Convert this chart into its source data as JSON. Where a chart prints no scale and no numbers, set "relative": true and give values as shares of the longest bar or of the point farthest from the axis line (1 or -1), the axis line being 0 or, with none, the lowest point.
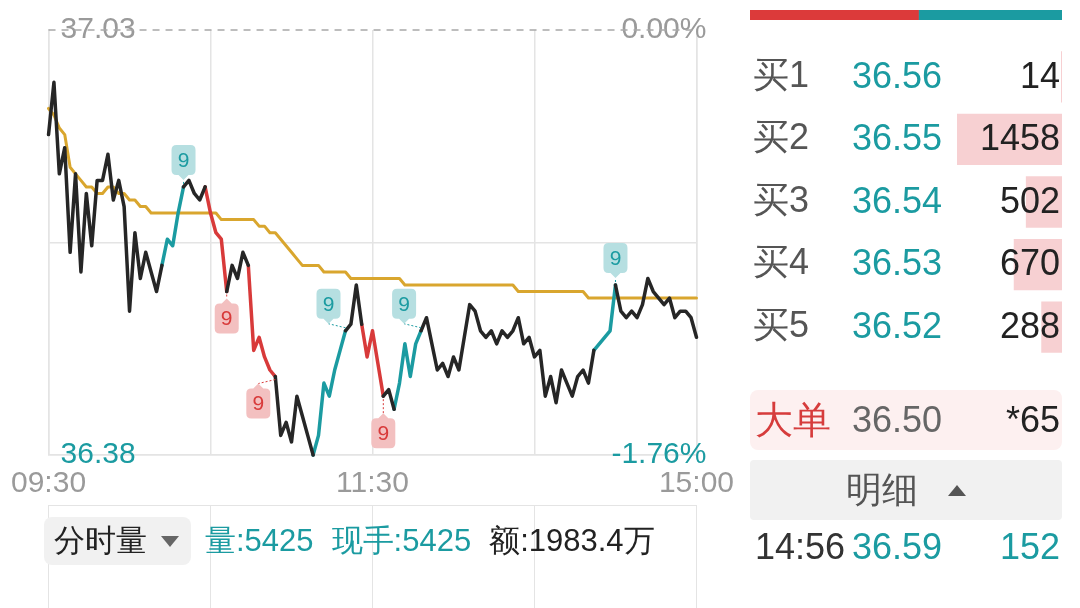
{
  "chart_data": [
    {
      "type": "line",
      "categories": [
        "09:30",
        null,
        null,
        null,
        null,
        null,
        null,
        null,
        null,
        null,
        null,
        null,
        null,
        null,
        null,
        null,
        null,
        null,
        null,
        null,
        null,
        null,
        null,
        null,
        null,
        null,
        null,
        null,
        null,
        null,
        null,
        null,
        null,
        null,
        null,
        null,
        null,
        null,
        null,
        null,
        null,
        null,
        null,
        null,
        null,
        null,
        null,
        null,
        null,
        null,
        null,
        null,
        null,
        null,
        null,
        null,
        null,
        null,
        null,
        null,
        "11:30",
        null,
        null,
        null,
        null,
        null,
        null,
        null,
        null,
        null,
        null,
        null,
        null,
        null,
        null,
        null,
        null,
        null,
        null,
        null,
        null,
        null,
        null,
        null,
        null,
        null,
        null,
        null,
        null,
        null,
        null,
        null,
        null,
        null,
        null,
        null,
        null,
        null,
        null,
        null,
        null,
        null,
        null,
        null,
        null,
        null,
        null,
        null,
        null,
        null,
        null,
        null,
        null,
        null,
        null,
        null,
        null,
        null,
        null,
        null,
        "15:00"
      ],
      "series": [
        {
          "color": "#262626",
          "values": [
            36.87,
            36.95,
            36.81,
            36.85,
            36.69,
            36.81,
            36.66,
            36.78,
            36.7,
            36.8,
            36.8,
            36.84,
            36.77,
            36.8,
            36.76,
            36.6,
            36.72,
            36.65,
            36.69,
            36.66,
            36.63,
            36.67,
            null,
            null,
            null,
            36.79,
            36.8,
            36.78,
            36.77,
            36.79,
            null,
            null,
            null,
            36.63,
            36.67,
            36.65,
            36.69,
            36.67,
            null,
            null,
            null,
            null,
            36.5,
            36.41,
            36.43,
            36.4,
            36.47,
            36.44,
            36.41,
            36.38,
            null,
            null,
            null,
            null,
            null,
            36.57,
            36.58,
            36.64,
            36.58,
            null,
            null,
            null,
            36.47,
            36.48,
            36.45,
            null,
            null,
            null,
            null,
            36.57,
            36.59,
            36.55,
            36.51,
            36.52,
            36.5,
            36.53,
            36.51,
            36.56,
            36.61,
            36.6,
            36.57,
            36.56,
            36.57,
            36.55,
            36.57,
            36.56,
            36.57,
            36.59,
            36.55,
            36.56,
            36.53,
            36.54,
            36.47,
            36.5,
            36.46,
            36.51,
            36.49,
            36.47,
            36.5,
            36.51,
            36.49,
            36.54,
            null,
            null,
            null,
            36.64,
            36.6,
            36.59,
            36.6,
            36.59,
            36.61,
            36.65,
            36.63,
            36.62,
            36.61,
            36.62,
            36.59,
            36.6,
            36.6,
            36.59,
            36.56
          ]
        },
        {
          "color": "#1b9ba1",
          "values": [
            null,
            null,
            null,
            null,
            null,
            null,
            null,
            null,
            null,
            null,
            null,
            null,
            null,
            null,
            null,
            null,
            null,
            null,
            null,
            null,
            null,
            36.67,
            36.71,
            36.7,
            36.75,
            36.79,
            null,
            null,
            null,
            null,
            null,
            null,
            null,
            null,
            null,
            null,
            null,
            null,
            null,
            null,
            null,
            null,
            null,
            null,
            null,
            null,
            null,
            null,
            null,
            36.38,
            36.41,
            36.49,
            36.47,
            36.51,
            36.54,
            36.57,
            null,
            null,
            null,
            null,
            null,
            null,
            null,
            null,
            36.45,
            36.49,
            36.55,
            36.5,
            36.55,
            36.57,
            null,
            null,
            null,
            null,
            null,
            null,
            null,
            null,
            null,
            null,
            null,
            null,
            null,
            null,
            null,
            null,
            null,
            null,
            null,
            null,
            null,
            null,
            null,
            null,
            null,
            null,
            null,
            null,
            null,
            null,
            null,
            36.54,
            36.55,
            36.56,
            36.57,
            36.64,
            null,
            null,
            null,
            null,
            null,
            null,
            null,
            null,
            null,
            null,
            null,
            null,
            null,
            null,
            null
          ]
        },
        {
          "color": "#d83a3a",
          "values": [
            null,
            null,
            null,
            null,
            null,
            null,
            null,
            null,
            null,
            null,
            null,
            null,
            null,
            null,
            null,
            null,
            null,
            null,
            null,
            null,
            null,
            null,
            null,
            null,
            null,
            null,
            null,
            null,
            null,
            36.79,
            36.75,
            36.72,
            36.71,
            36.63,
            null,
            null,
            null,
            36.67,
            36.54,
            36.56,
            36.53,
            36.51,
            36.5,
            null,
            null,
            null,
            null,
            null,
            null,
            null,
            null,
            null,
            null,
            null,
            null,
            null,
            null,
            null,
            36.58,
            36.53,
            36.57,
            36.52,
            36.47,
            null,
            null,
            null,
            null,
            null,
            null,
            null,
            null,
            null,
            null,
            null,
            null,
            null,
            null,
            null,
            null,
            null,
            null,
            null,
            null,
            null,
            null,
            null,
            null,
            null,
            null,
            null,
            null,
            null,
            null,
            null,
            null,
            null,
            null,
            null,
            null,
            null,
            null,
            null,
            null,
            null,
            null,
            null,
            null,
            null,
            null,
            null,
            null,
            null,
            null,
            null,
            null,
            null,
            null,
            null,
            null,
            null,
            null
          ]
        },
        {
          "color": "#d9a62e",
          "values": [
            36.91,
            36.9,
            36.88,
            36.87,
            36.82,
            36.81,
            36.8,
            36.79,
            36.79,
            36.78,
            36.78,
            36.79,
            36.79,
            36.78,
            36.78,
            36.77,
            36.77,
            36.76,
            36.76,
            36.75,
            36.75,
            36.75,
            36.75,
            36.75,
            36.75,
            36.75,
            36.75,
            36.75,
            36.75,
            36.75,
            36.75,
            36.75,
            36.74,
            36.74,
            36.74,
            36.74,
            36.74,
            36.74,
            36.74,
            36.73,
            36.73,
            36.72,
            36.72,
            36.71,
            36.7,
            36.69,
            36.68,
            36.67,
            36.67,
            36.67,
            36.67,
            36.66,
            36.66,
            36.66,
            36.66,
            36.66,
            36.65,
            36.65,
            36.65,
            36.65,
            36.65,
            36.65,
            36.65,
            36.65,
            36.65,
            36.65,
            36.64,
            36.64,
            36.64,
            36.64,
            36.64,
            36.64,
            36.64,
            36.64,
            36.64,
            36.64,
            36.64,
            36.64,
            36.64,
            36.64,
            36.64,
            36.64,
            36.64,
            36.64,
            36.64,
            36.64,
            36.64,
            36.63,
            36.63,
            36.63,
            36.63,
            36.63,
            36.63,
            36.63,
            36.63,
            36.63,
            36.63,
            36.63,
            36.63,
            36.63,
            36.62,
            36.62,
            36.62,
            36.62,
            36.62,
            36.62,
            36.62,
            36.62,
            36.62,
            36.62,
            36.62,
            36.62,
            36.62,
            36.62,
            36.62,
            36.62,
            36.62,
            36.62,
            36.62,
            36.62,
            36.62
          ]
        }
      ],
      "ylim": [
        36.38,
        37.03
      ],
      "yticks": [
        36.38,
        {
          "value": 36.705,
          "label": null
        },
        37.03
      ],
      "y2lim": [
        -1.76,
        0
      ],
      "y2ticks": [
        {
          "value": -1.76,
          "label": "-1.76%"
        },
        {
          "value": 0,
          "label": "0.00%"
        }
      ],
      "ref_lines": [
        {
          "axis": "y",
          "value": 37.03,
          "line_style": "dashed",
          "color": "#a8a8a8"
        }
      ],
      "annotations": [
        "9",
        "9",
        "9",
        "9",
        "9",
        "9",
        "9",
        "分时量",
        "量:5425",
        "现手:5425",
        "额:1983.4万"
      ],
      "grid": true,
      "legend": false,
      "marker": "none",
      "line_style": "solid"
    },
    {
      "type": "bar",
      "orientation": "horizontal",
      "stacked": true,
      "relative": true,
      "categories": [
        null
      ],
      "series": [
        {
          "color": "#dc3a3a",
          "values": [
            0.54
          ]
        },
        {
          "color": "#1b9ba1",
          "values": [
            0.46
          ]
        }
      ],
      "tick_labels": false
    },
    {
      "type": "bar",
      "orientation": "horizontal",
      "categories": [
        "买1",
        "买2",
        "买3",
        "买4",
        "买5"
      ],
      "values": [
        14,
        1458,
        502,
        670,
        288
      ],
      "color": "#f7d0d2",
      "data_labels": true,
      "xlim": [
        1458,
        0
      ],
      "tick_labels": "y",
      "annotations": [
        "36.56",
        "36.55",
        "36.54",
        "36.53",
        "36.52",
        "大单",
        "36.50",
        "*65",
        "明细",
        "14:56",
        "36.59",
        "152"
      ]
    }
  ]
}
